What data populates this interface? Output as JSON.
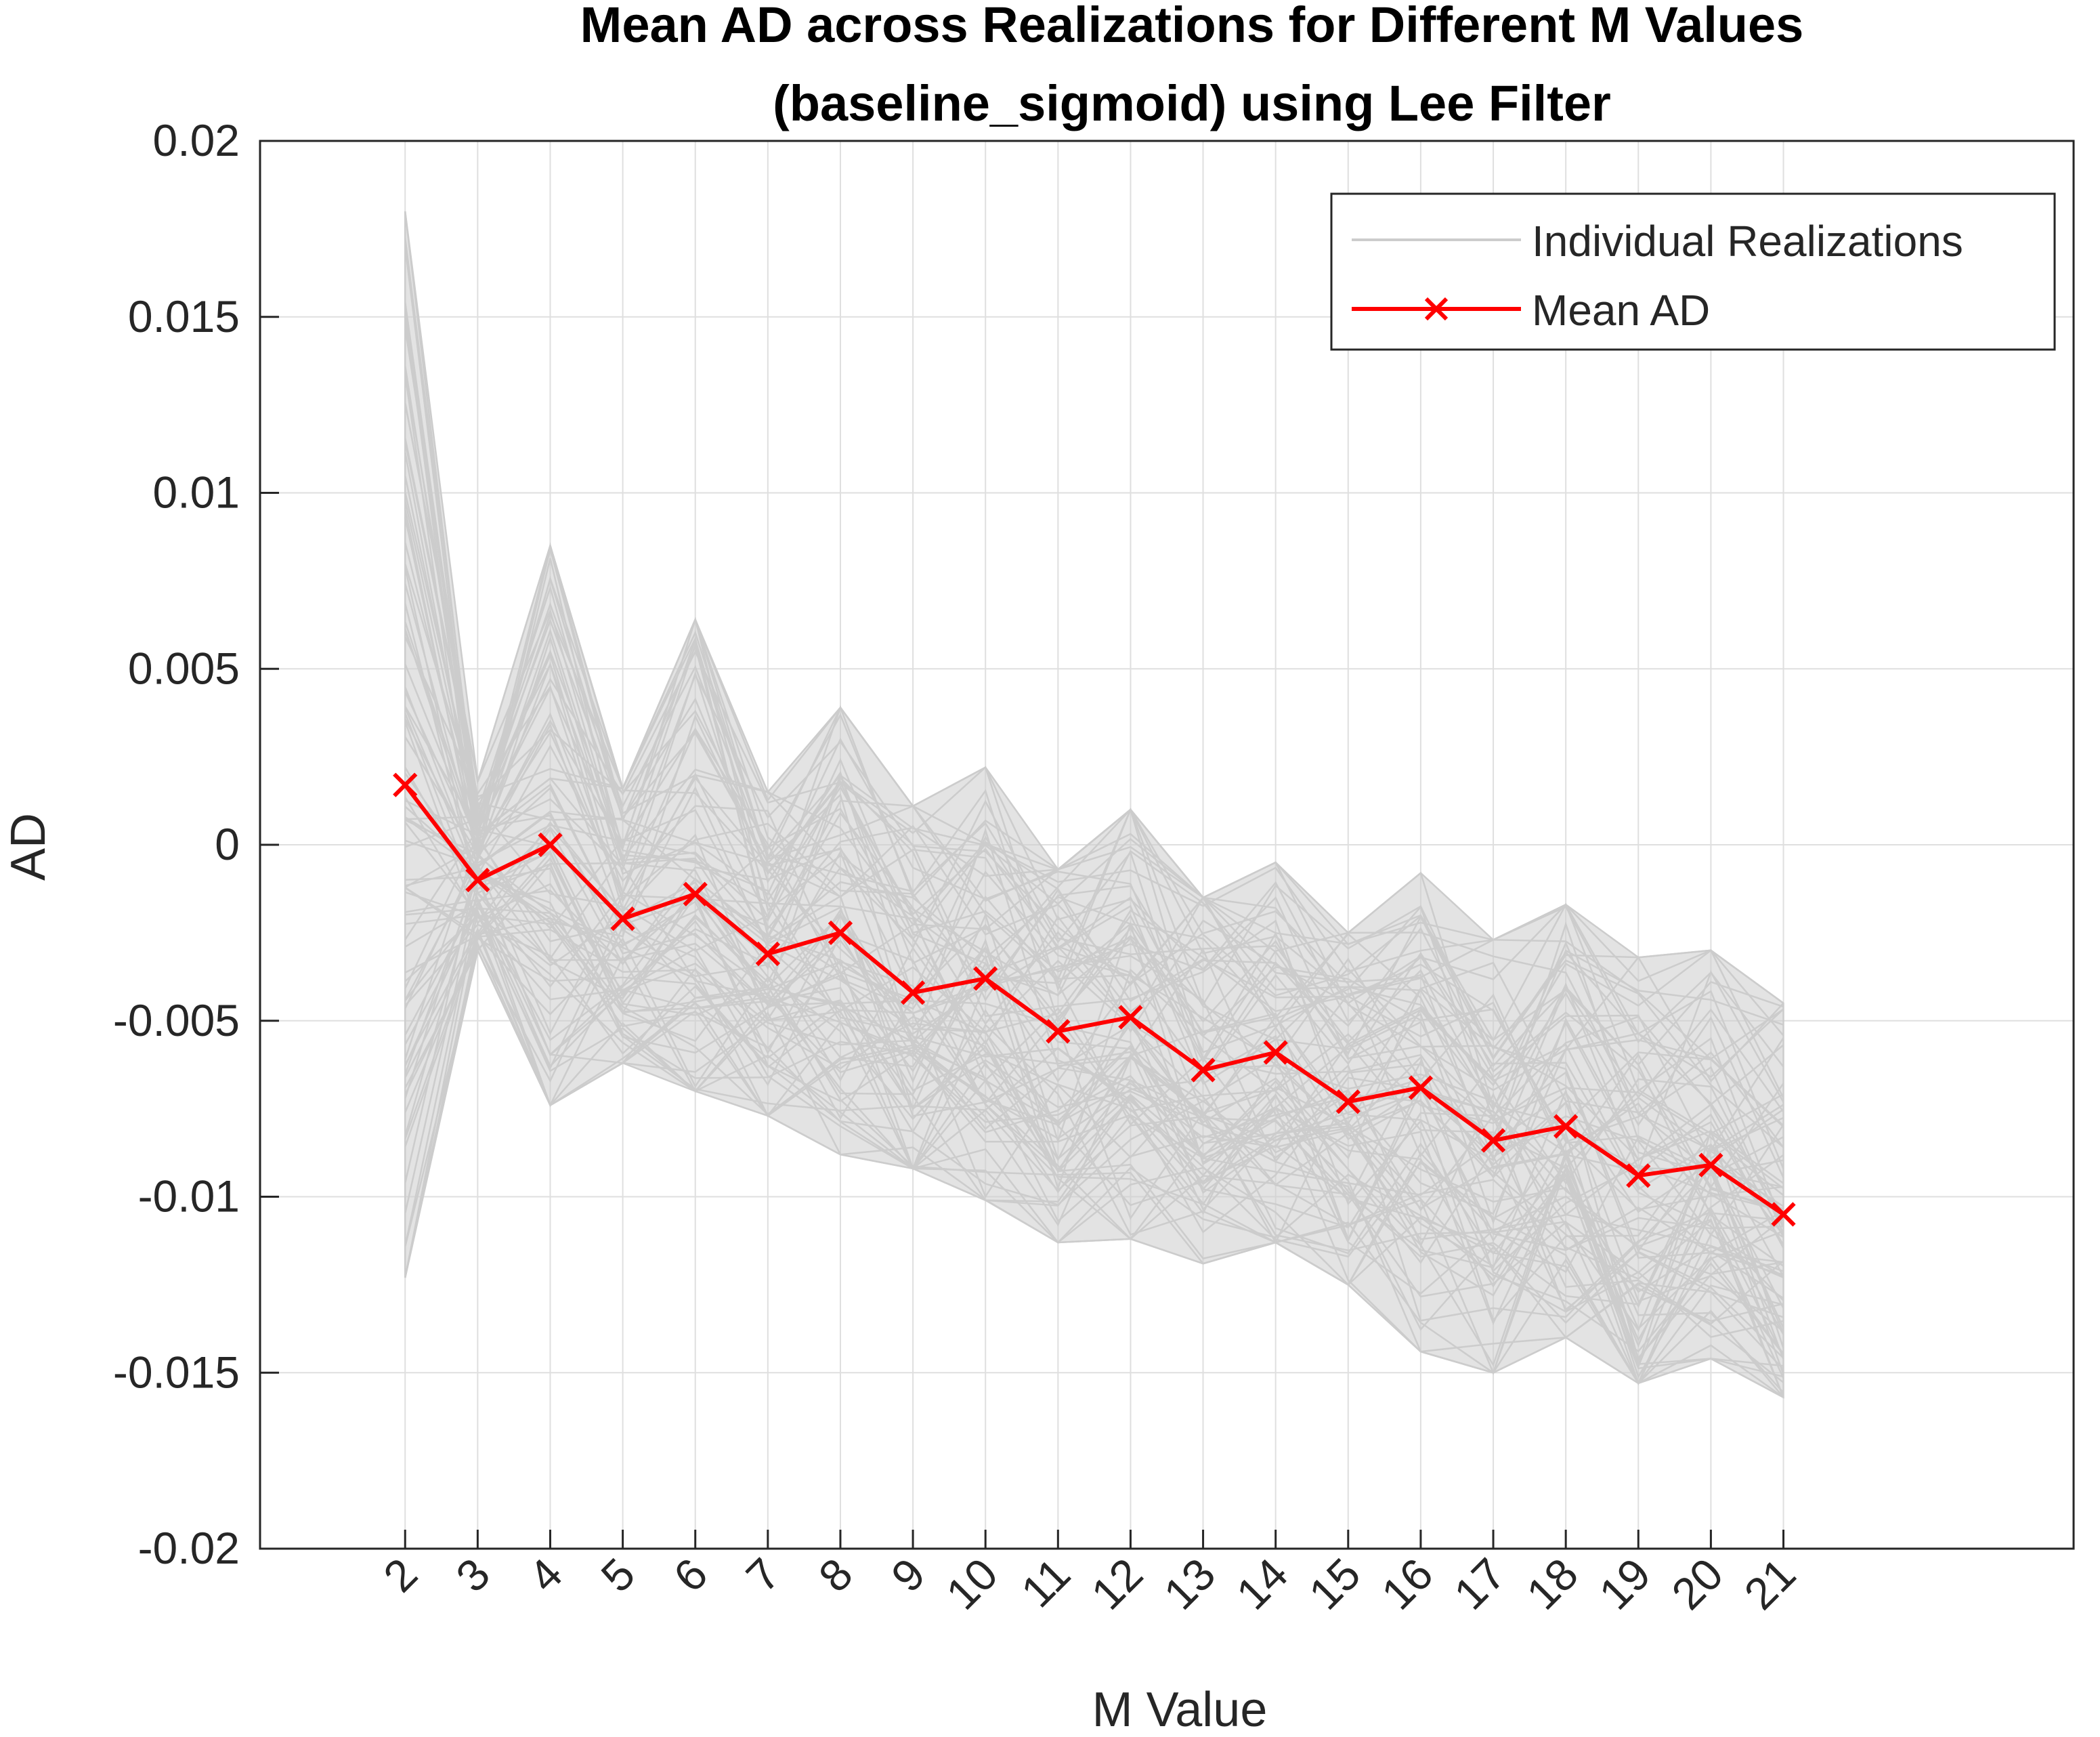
{
  "chart_data": {
    "type": "line",
    "title": "Mean AD across Realizations for Different M Values",
    "subtitle": "(baseline_sigmoid) using Lee Filter",
    "xlabel": "M Value",
    "ylabel": "AD",
    "x": [
      2,
      3,
      4,
      5,
      6,
      7,
      8,
      9,
      10,
      11,
      12,
      13,
      14,
      15,
      16,
      17,
      18,
      19,
      20,
      21
    ],
    "x_tick_labels": [
      "2",
      "3",
      "4",
      "5",
      "6",
      "7",
      "8",
      "9",
      "10",
      "11",
      "12",
      "13",
      "14",
      "15",
      "16",
      "17",
      "18",
      "19",
      "20",
      "21"
    ],
    "xlim": [
      0,
      25
    ],
    "ylim": [
      -0.02,
      0.02
    ],
    "y_ticks": [
      0.02,
      0.015,
      0.01,
      0.005,
      0,
      -0.005,
      -0.01,
      -0.015,
      -0.02
    ],
    "y_tick_labels": [
      "0.02",
      "0.015",
      "0.01",
      "0.005",
      "0",
      "-0.005",
      "-0.01",
      "-0.015",
      "-0.02"
    ],
    "grid": true,
    "legend_position": "top-right",
    "series": [
      {
        "name": "Individual Realizations",
        "color": "#cccccc",
        "representation": "band",
        "min": [
          -0.0123,
          -0.003,
          -0.0074,
          -0.0062,
          -0.007,
          -0.0077,
          -0.0088,
          -0.0092,
          -0.0101,
          -0.0113,
          -0.0112,
          -0.0119,
          -0.0113,
          -0.0125,
          -0.0144,
          -0.015,
          -0.014,
          -0.0153,
          -0.0146,
          -0.0157
        ],
        "max": [
          0.018,
          0.0018,
          0.0085,
          0.0016,
          0.0064,
          0.0015,
          0.0039,
          0.0011,
          0.0022,
          -0.0007,
          0.001,
          -0.0015,
          -0.0005,
          -0.0025,
          -0.0008,
          -0.0027,
          -0.0017,
          -0.0032,
          -0.003,
          -0.0045
        ]
      },
      {
        "name": "Mean AD",
        "color": "#ff0000",
        "marker": "x",
        "values": [
          0.0017,
          -0.001,
          0.0,
          -0.0021,
          -0.0014,
          -0.0031,
          -0.0025,
          -0.0042,
          -0.0038,
          -0.0053,
          -0.0049,
          -0.0064,
          -0.0059,
          -0.0073,
          -0.0069,
          -0.0084,
          -0.008,
          -0.0094,
          -0.0091,
          -0.0105
        ]
      }
    ]
  }
}
